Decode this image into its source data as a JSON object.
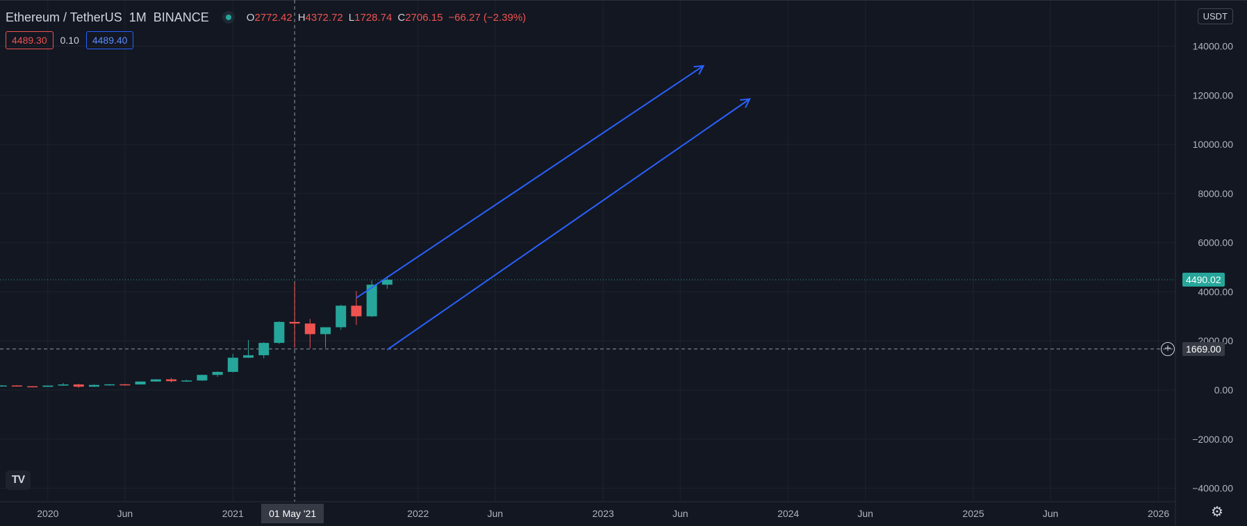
{
  "header": {
    "symbol": "Ethereum / TetherUS",
    "interval": "1M",
    "exchange": "BINANCE",
    "open_label": "O",
    "open": "2772.42",
    "high_label": "H",
    "high": "4372.72",
    "low_label": "L",
    "low": "1728.74",
    "close_label": "C",
    "close": "2706.15",
    "change": "−66.27 (−2.39%)"
  },
  "trade": {
    "sell": "4489.30",
    "spread": "0.10",
    "buy": "4489.40"
  },
  "currency": "USDT",
  "last_price": {
    "label": "4490.02",
    "value": 4490.02,
    "color": "#26a69a"
  },
  "crosshair": {
    "price_label": "1669.00",
    "value": 1669.0,
    "date_label": "01 May '21",
    "date_month_index": 16
  },
  "colors": {
    "background": "#131722",
    "up": "#26a69a",
    "down": "#ef5350",
    "arrow": "#2962ff",
    "grid": "#1e222d",
    "axis_text": "#b2b5be"
  },
  "icons": {
    "logo": "tradingview-logo-icon",
    "plus": "add-alert-plus-icon",
    "settings": "gear-icon"
  },
  "chart_data": {
    "type": "candlestick",
    "title": "",
    "xlabel": "",
    "ylabel": "",
    "ylim": [
      -4000,
      14000
    ],
    "y_ticks": [
      -4000,
      -2000,
      0,
      2000,
      4000,
      6000,
      8000,
      10000,
      12000,
      14000
    ],
    "y_tick_labels": [
      "−4000.00",
      "−2000.00",
      "0.00",
      "2000.00",
      "4000.00",
      "6000.00",
      "8000.00",
      "10000.00",
      "12000.00",
      "14000.00"
    ],
    "x_unit": "months since Jan 2020",
    "x_ticks": [
      {
        "label": "2020",
        "month": 0
      },
      {
        "label": "Jun",
        "month": 5
      },
      {
        "label": "2021",
        "month": 12
      },
      {
        "label": "2022",
        "month": 24
      },
      {
        "label": "Jun",
        "month": 29
      },
      {
        "label": "2023",
        "month": 36
      },
      {
        "label": "Jun",
        "month": 41
      },
      {
        "label": "2024",
        "month": 48
      },
      {
        "label": "Jun",
        "month": 53
      },
      {
        "label": "2025",
        "month": 60
      },
      {
        "label": "Jun",
        "month": 65
      },
      {
        "label": "2026",
        "month": 72
      }
    ],
    "xlim": [
      -3.1,
      73.1
    ],
    "candles": [
      {
        "date": "2019-10",
        "o": 180,
        "h": 200,
        "l": 160,
        "c": 183
      },
      {
        "date": "2019-11",
        "o": 183,
        "h": 195,
        "l": 145,
        "c": 152
      },
      {
        "date": "2019-12",
        "o": 152,
        "h": 158,
        "l": 117,
        "c": 129
      },
      {
        "date": "2020-01",
        "o": 129,
        "h": 185,
        "l": 125,
        "c": 180
      },
      {
        "date": "2020-02",
        "o": 180,
        "h": 288,
        "l": 170,
        "c": 226
      },
      {
        "date": "2020-03",
        "o": 226,
        "h": 253,
        "l": 86,
        "c": 133
      },
      {
        "date": "2020-04",
        "o": 133,
        "h": 227,
        "l": 125,
        "c": 206
      },
      {
        "date": "2020-05",
        "o": 206,
        "h": 246,
        "l": 177,
        "c": 231
      },
      {
        "date": "2020-06",
        "o": 231,
        "h": 254,
        "l": 215,
        "c": 225
      },
      {
        "date": "2020-07",
        "o": 225,
        "h": 348,
        "l": 223,
        "c": 345
      },
      {
        "date": "2020-08",
        "o": 345,
        "h": 445,
        "l": 340,
        "c": 434
      },
      {
        "date": "2020-09",
        "o": 434,
        "h": 488,
        "l": 310,
        "c": 360
      },
      {
        "date": "2020-10",
        "o": 360,
        "h": 420,
        "l": 335,
        "c": 386
      },
      {
        "date": "2020-11",
        "o": 386,
        "h": 622,
        "l": 372,
        "c": 615
      },
      {
        "date": "2020-12",
        "o": 615,
        "h": 760,
        "l": 535,
        "c": 737
      },
      {
        "date": "2021-01",
        "o": 737,
        "h": 1475,
        "l": 714,
        "c": 1314
      },
      {
        "date": "2021-02",
        "o": 1314,
        "h": 2036,
        "l": 1300,
        "c": 1416
      },
      {
        "date": "2021-03",
        "o": 1416,
        "h": 1943,
        "l": 1290,
        "c": 1918
      },
      {
        "date": "2021-04",
        "o": 1918,
        "h": 2797,
        "l": 1878,
        "c": 2772
      },
      {
        "date": "2021-05",
        "o": 2772.42,
        "h": 4372.72,
        "l": 1728.74,
        "c": 2706.15
      },
      {
        "date": "2021-06",
        "o": 2706,
        "h": 2890,
        "l": 1700,
        "c": 2275
      },
      {
        "date": "2021-07",
        "o": 2275,
        "h": 2551,
        "l": 1719,
        "c": 2555
      },
      {
        "date": "2021-08",
        "o": 2555,
        "h": 3470,
        "l": 2451,
        "c": 3433
      },
      {
        "date": "2021-09",
        "o": 3433,
        "h": 4027,
        "l": 2650,
        "c": 3000
      },
      {
        "date": "2021-10",
        "o": 3000,
        "h": 4460,
        "l": 2970,
        "c": 4288
      },
      {
        "date": "2021-11",
        "o": 4288,
        "h": 4630,
        "l": 4120,
        "c": 4490
      }
    ],
    "arrows": [
      {
        "from": {
          "month": 20,
          "price": 3750
        },
        "to": {
          "month": 42.5,
          "price": 13200
        }
      },
      {
        "from": {
          "month": 22,
          "price": 1640
        },
        "to": {
          "month": 45.5,
          "price": 11850
        }
      }
    ]
  }
}
